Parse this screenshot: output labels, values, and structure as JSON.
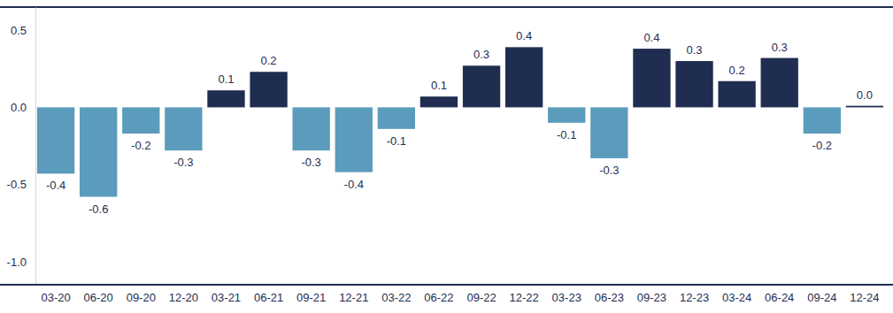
{
  "chart_data": {
    "type": "bar",
    "categories": [
      "03-20",
      "06-20",
      "09-20",
      "12-20",
      "03-21",
      "06-21",
      "09-21",
      "12-21",
      "03-22",
      "06-22",
      "09-22",
      "12-22",
      "03-23",
      "06-23",
      "09-23",
      "12-23",
      "03-24",
      "06-24",
      "09-24",
      "12-24"
    ],
    "values": [
      -0.43,
      -0.58,
      -0.17,
      -0.28,
      0.11,
      0.23,
      -0.28,
      -0.42,
      -0.14,
      0.07,
      0.27,
      0.39,
      -0.1,
      -0.33,
      0.38,
      0.3,
      0.17,
      0.32,
      -0.17,
      0.01
    ],
    "value_labels": [
      "-0.4",
      "-0.6",
      "-0.2",
      "-0.3",
      "0.1",
      "0.2",
      "-0.3",
      "-0.4",
      "-0.1",
      "0.1",
      "0.3",
      "0.4",
      "-0.1",
      "-0.3",
      "0.4",
      "0.3",
      "0.2",
      "0.3",
      "-0.2",
      "0.0"
    ],
    "colors": [
      "#5b9bbb",
      "#5b9bbb",
      "#5b9bbb",
      "#5b9bbb",
      "#1f2d50",
      "#1f2d50",
      "#5b9bbb",
      "#5b9bbb",
      "#5b9bbb",
      "#1f2d50",
      "#1f2d50",
      "#1f2d50",
      "#5b9bbb",
      "#5b9bbb",
      "#1f2d50",
      "#1f2d50",
      "#1f2d50",
      "#1f2d50",
      "#5b9bbb",
      "#1f2d50"
    ],
    "ylim": [
      -1.15,
      0.65
    ],
    "yticks": [
      {
        "value": -1,
        "label": "-1.0"
      },
      -0.5,
      {
        "value": 0,
        "label": "0.0"
      },
      0.5
    ],
    "grid": false,
    "data_labels": true
  }
}
